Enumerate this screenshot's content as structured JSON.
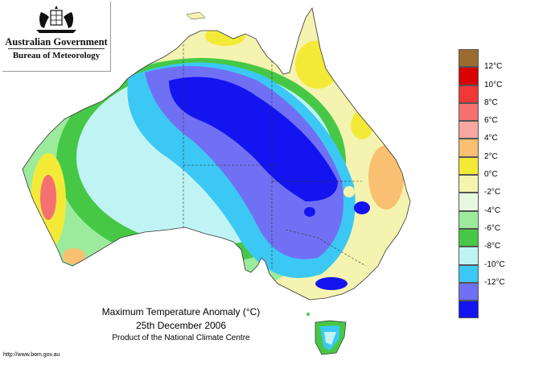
{
  "logo": {
    "org": "Australian Government",
    "bureau": "Bureau of Meteorology"
  },
  "caption": {
    "title": "Maximum Temperature Anomaly (°C)",
    "date": "25th December 2006",
    "product": "Product of the National Climate Centre"
  },
  "url": "http://www.bom.gov.au",
  "legend": [
    {
      "color": "#9c6b30",
      "label": ""
    },
    {
      "color": "#d80000",
      "label": "12°C"
    },
    {
      "color": "#f03838",
      "label": "10°C"
    },
    {
      "color": "#f57070",
      "label": "8°C"
    },
    {
      "color": "#f8a8a0",
      "label": "6°C"
    },
    {
      "color": "#f8c070",
      "label": "4°C"
    },
    {
      "color": "#f3ea38",
      "label": "2°C"
    },
    {
      "color": "#f5f3b0",
      "label": "0°C"
    },
    {
      "color": "#e8f8e0",
      "label": "-2°C"
    },
    {
      "color": "#9ceb9c",
      "label": "-4°C"
    },
    {
      "color": "#46c846",
      "label": "-6°C"
    },
    {
      "color": "#c0f4f4",
      "label": "-8°C"
    },
    {
      "color": "#3cc8f4",
      "label": "-10°C"
    },
    {
      "color": "#7070f4",
      "label": "-12°C"
    },
    {
      "color": "#1414f0",
      "label": ""
    }
  ]
}
